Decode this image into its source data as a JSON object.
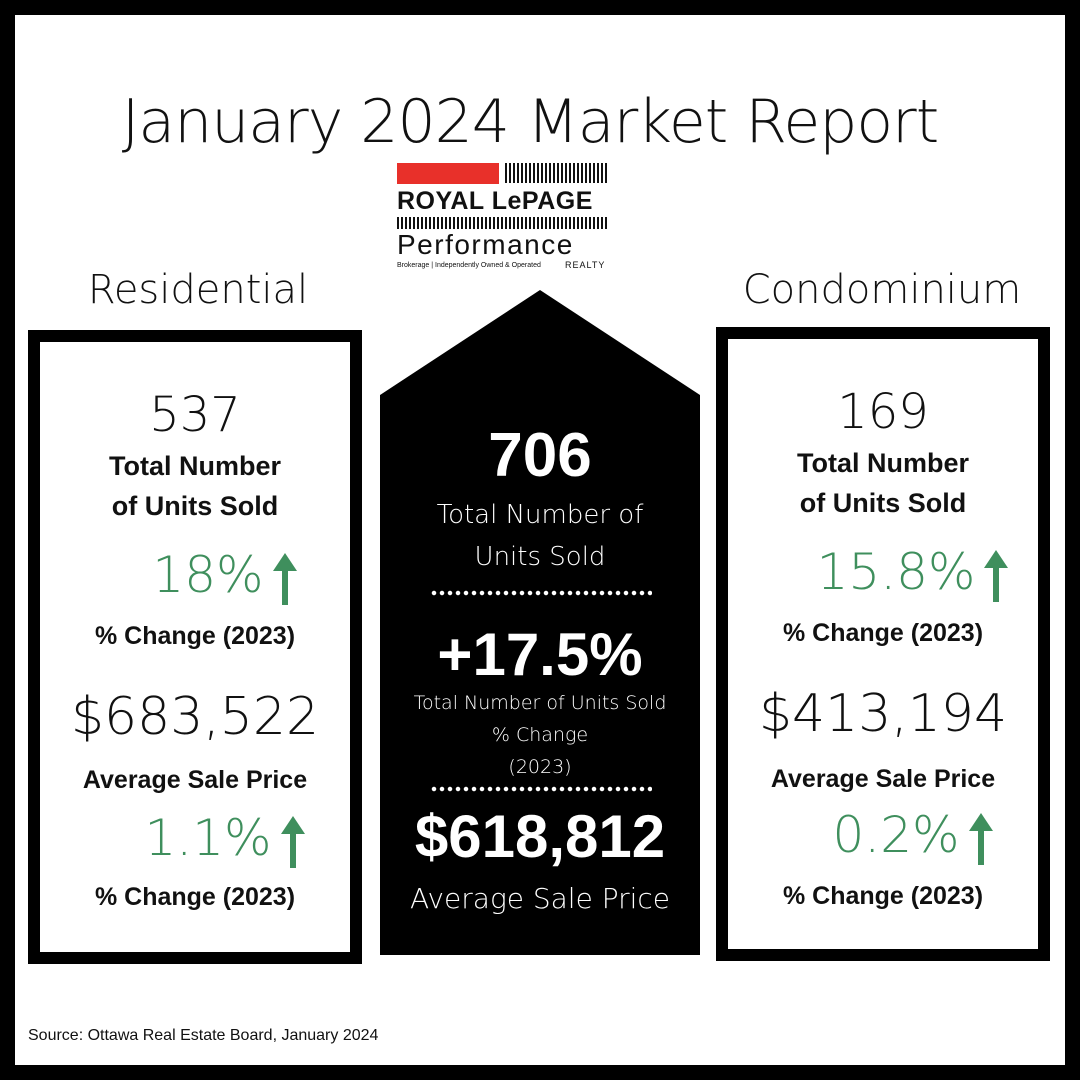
{
  "title": "January 2024 Market Report",
  "logo": {
    "brand": "ROYAL LePAGE",
    "name": "Performance",
    "tagline": "Brokerage | Independently Owned & Operated",
    "realty": "REALTY",
    "red": "#e8302a"
  },
  "residential": {
    "heading": "Residential",
    "units": "537",
    "units_label_1": "Total Number",
    "units_label_2": "of Units Sold",
    "units_change": "18%",
    "units_change_label": "% Change (2023)",
    "avg_price": "$683,522",
    "avg_price_label": "Average Sale Price",
    "price_change": "1.1%",
    "price_change_label": "% Change (2023)"
  },
  "total": {
    "units": "706",
    "units_label_1": "Total Number of",
    "units_label_2": "Units Sold",
    "change": "+17.5%",
    "change_label_1": "Total Number of Units Sold",
    "change_label_2": "% Change",
    "change_label_3": "(2023)",
    "avg_price": "$618,812",
    "avg_price_label": "Average Sale Price"
  },
  "condominium": {
    "heading": "Condominium",
    "units": "169",
    "units_label_1": "Total Number",
    "units_label_2": "of Units Sold",
    "units_change": "15.8%",
    "units_change_label": "% Change (2023)",
    "avg_price": "$413,194",
    "avg_price_label": "Average Sale Price",
    "price_change": "0.2%",
    "price_change_label": "% Change (2023)"
  },
  "source": "Source: Ottawa Real Estate Board, January 2024",
  "colors": {
    "up": "#3f8f5d",
    "frame": "#000000"
  },
  "icons": {
    "increase": "arrow-up-icon"
  }
}
